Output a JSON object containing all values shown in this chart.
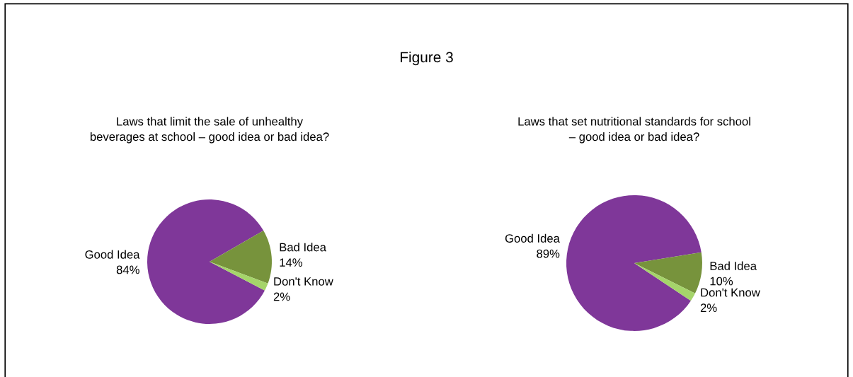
{
  "chart_data": [
    {
      "type": "pie",
      "title": "Laws that limit the sale of unhealthy\nbeverages at school – good idea or bad idea?",
      "annotations": [
        "Figure 3"
      ],
      "categories": [
        "Good Idea",
        "Bad Idea",
        "Don't Know"
      ],
      "values": [
        84,
        14,
        2
      ],
      "value_labels": [
        "84%",
        "14%",
        "2%"
      ],
      "colors": [
        "#7f3799",
        "#77933c",
        "#a5d46a"
      ],
      "legend": false
    },
    {
      "type": "pie",
      "title": "Laws that set nutritional standards for school\n– good idea or bad idea?",
      "categories": [
        "Good Idea",
        "Bad Idea",
        "Don't Know"
      ],
      "values": [
        89,
        10,
        2
      ],
      "value_labels": [
        "89%",
        "10%",
        "2%"
      ],
      "colors": [
        "#7f3799",
        "#77933c",
        "#a5d46a"
      ],
      "legend": false
    }
  ]
}
